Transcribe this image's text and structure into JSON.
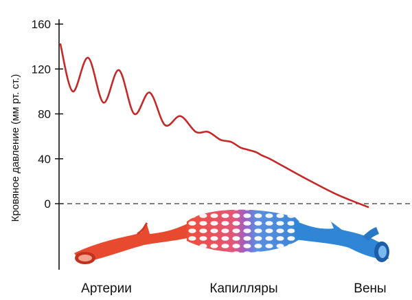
{
  "chart_data": {
    "type": "line",
    "title": "",
    "xlabel": "",
    "ylabel": "Кровяное давление (мм рт. ст.)",
    "ylim": [
      0,
      160
    ],
    "yticks": [
      0,
      40,
      80,
      120,
      160
    ],
    "grid": false,
    "reference_line": {
      "y": 0,
      "style": "dashed"
    },
    "categories": [
      "Артерии",
      "Капилляры",
      "Вены"
    ],
    "series": [
      {
        "color": "#c62828",
        "x": [
          0,
          0.04,
          0.09,
          0.14,
          0.19,
          0.24,
          0.29,
          0.34,
          0.39,
          0.44,
          0.48,
          0.52,
          0.555,
          0.585,
          0.61,
          0.635,
          0.655,
          0.68,
          0.72,
          0.8,
          0.9,
          1.0
        ],
        "values": [
          142,
          100,
          130,
          90,
          119,
          80,
          99,
          70,
          78,
          64,
          64,
          57,
          55,
          50,
          48,
          46,
          43,
          40,
          34,
          22,
          8,
          -3
        ]
      }
    ]
  },
  "colors": {
    "arteries": "#e8412c",
    "capillaries_mid": "#9b59b6",
    "veins": "#2f86d6"
  },
  "icons": {
    "vessel_illustration": "blood-vessel-illustration"
  }
}
